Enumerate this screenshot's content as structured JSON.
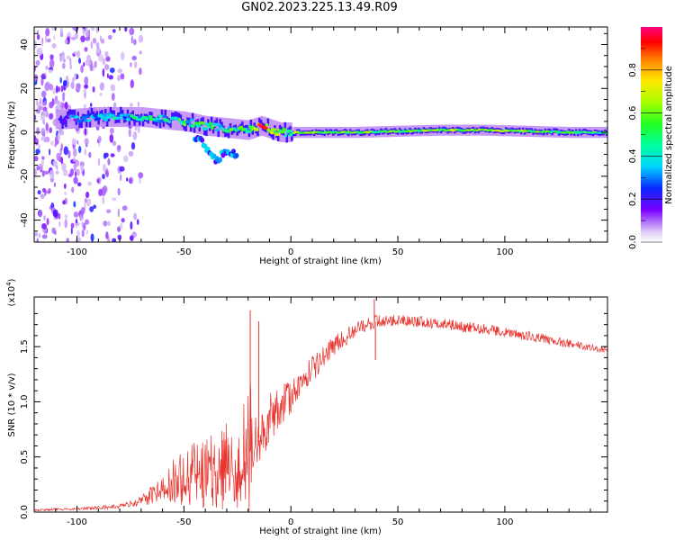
{
  "title": "GN02.2023.225.13.49.R09",
  "colors": {
    "snr_line": "#e8322c",
    "frame": "#000000"
  },
  "chart_data": [
    {
      "type": "heatmap",
      "name": "spectrogram",
      "xlabel": "Height of straight line (km)",
      "ylabel": "Frequency (Hz)",
      "xlim": [
        -120,
        148
      ],
      "ylim": [
        -50,
        48
      ],
      "x_ticks": [
        -100,
        -50,
        0,
        50,
        100
      ],
      "y_ticks": [
        -40,
        -20,
        0,
        20,
        40
      ],
      "colorbar": {
        "label": "Normalized spectral amplitude",
        "range": [
          0,
          1
        ],
        "ticks": [
          0.0,
          0.2,
          0.4,
          0.6,
          0.8
        ],
        "tick_labels": [
          "0.0",
          "0.2",
          "0.4",
          "0.6",
          "0.8"
        ]
      },
      "ridge": [
        {
          "x": -105,
          "freq": 6,
          "amp": 0.25
        },
        {
          "x": -90,
          "freq": 7,
          "amp": 0.3
        },
        {
          "x": -80,
          "freq": 7,
          "amp": 0.35
        },
        {
          "x": -70,
          "freq": 7,
          "amp": 0.4
        },
        {
          "x": -60,
          "freq": 6,
          "amp": 0.4
        },
        {
          "x": -50,
          "freq": 5,
          "amp": 0.45
        },
        {
          "x": -40,
          "freq": 3,
          "amp": 0.45
        },
        {
          "x": -30,
          "freq": 2,
          "amp": 0.45
        },
        {
          "x": -20,
          "freq": 1,
          "amp": 0.5
        },
        {
          "x": -14,
          "freq": 3,
          "amp": 0.9
        },
        {
          "x": -5,
          "freq": 0,
          "amp": 0.5
        },
        {
          "x": 10,
          "freq": 0,
          "amp": 0.6
        },
        {
          "x": 30,
          "freq": 0,
          "amp": 0.55
        },
        {
          "x": 50,
          "freq": 0.5,
          "amp": 0.6
        },
        {
          "x": 70,
          "freq": 1,
          "amp": 0.55
        },
        {
          "x": 90,
          "freq": 1,
          "amp": 0.65
        },
        {
          "x": 110,
          "freq": 0.5,
          "amp": 0.55
        },
        {
          "x": 130,
          "freq": 0,
          "amp": 0.5
        },
        {
          "x": 148,
          "freq": 0,
          "amp": 0.5
        }
      ],
      "descending_branch": [
        {
          "x": -45,
          "freq": -2
        },
        {
          "x": -40,
          "freq": -6
        },
        {
          "x": -35,
          "freq": -13
        },
        {
          "x": -30,
          "freq": -8
        },
        {
          "x": -25,
          "freq": -10
        }
      ],
      "scatter_region": {
        "x_min": -120,
        "x_max": -75
      }
    },
    {
      "type": "line",
      "name": "snr",
      "xlabel": "Height of straight line (km)",
      "ylabel": "SNR (10 * v/v)",
      "multiplier_label": "(x10",
      "multiplier_exponent": "4",
      "multiplier_close": ")",
      "xlim": [
        -120,
        148
      ],
      "ylim": [
        0,
        1.95
      ],
      "x_ticks": [
        -100,
        -50,
        0,
        50,
        100
      ],
      "y_ticks": [
        0.0,
        0.5,
        1.0,
        1.5
      ],
      "y_tick_labels": [
        "0.0",
        "0.5",
        "1.0",
        "1.5"
      ],
      "envelope": [
        {
          "x": -120,
          "y": 0.02,
          "noise": 0.01
        },
        {
          "x": -100,
          "y": 0.03,
          "noise": 0.01
        },
        {
          "x": -80,
          "y": 0.05,
          "noise": 0.02
        },
        {
          "x": -70,
          "y": 0.1,
          "noise": 0.04
        },
        {
          "x": -60,
          "y": 0.22,
          "noise": 0.15
        },
        {
          "x": -55,
          "y": 0.3,
          "noise": 0.25
        },
        {
          "x": -45,
          "y": 0.35,
          "noise": 0.3
        },
        {
          "x": -35,
          "y": 0.38,
          "noise": 0.35
        },
        {
          "x": -25,
          "y": 0.45,
          "noise": 0.45
        },
        {
          "x": -19,
          "y": 0.55,
          "noise": 0.7
        },
        {
          "x": -17,
          "y": 0.6,
          "noise": 0.3
        },
        {
          "x": -10,
          "y": 0.85,
          "noise": 0.25
        },
        {
          "x": -5,
          "y": 0.95,
          "noise": 0.2
        },
        {
          "x": 0,
          "y": 1.05,
          "noise": 0.15
        },
        {
          "x": 10,
          "y": 1.3,
          "noise": 0.12
        },
        {
          "x": 20,
          "y": 1.5,
          "noise": 0.1
        },
        {
          "x": 30,
          "y": 1.65,
          "noise": 0.07
        },
        {
          "x": 40,
          "y": 1.73,
          "noise": 0.06
        },
        {
          "x": 50,
          "y": 1.74,
          "noise": 0.05
        },
        {
          "x": 70,
          "y": 1.71,
          "noise": 0.05
        },
        {
          "x": 90,
          "y": 1.66,
          "noise": 0.05
        },
        {
          "x": 110,
          "y": 1.6,
          "noise": 0.05
        },
        {
          "x": 130,
          "y": 1.53,
          "noise": 0.04
        },
        {
          "x": 148,
          "y": 1.47,
          "noise": 0.03
        }
      ],
      "spikes": [
        {
          "x": -19,
          "y": 1.83
        },
        {
          "x": -15,
          "y": 1.73
        },
        {
          "x": 39,
          "y": 1.93
        },
        {
          "x": 39.5,
          "y": 1.38
        }
      ]
    }
  ]
}
